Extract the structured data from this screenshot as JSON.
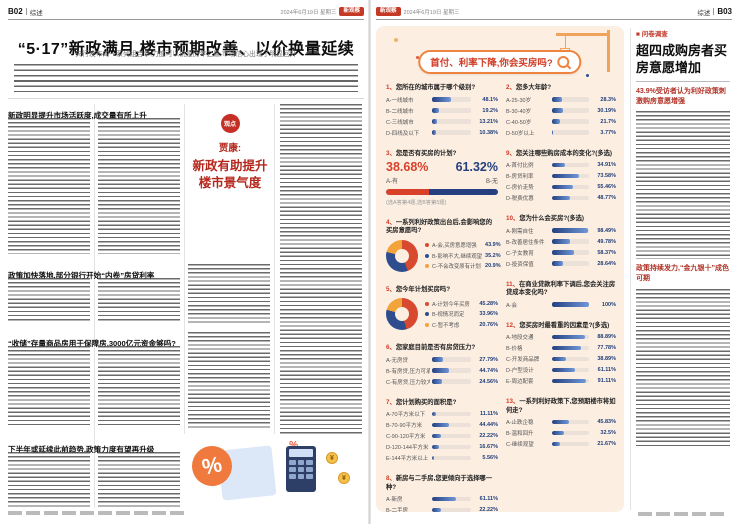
{
  "masthead": {
    "left_page": "B02",
    "right_page": "B03",
    "section_left": "综述",
    "section_right": "综述",
    "date_left": "2024年6月19日 星期三",
    "date_right": "2024年6月19日 星期三",
    "badge_left": "新观察",
    "badge_right": "新观察"
  },
  "left_page": {
    "headline": "“5·17”新政满月,楼市预期改善、以价换量延续",
    "deck": "央行发布的一系列组合拳,力度可以说是历年之最,市场信心出现了明显回升",
    "section1": "新政明显提升市场活跃度,成交量有所上升",
    "section2": "政策加快落地,部分银行开始“内卷”房贷利率",
    "section3": "“收储”存量商品房用于保障房,3000亿元资金够吗?",
    "section4": "下半年或延续此前趋势,政策力度有望再升级",
    "quote_badge": "观点",
    "quote_speaker": "贾康:",
    "quote_text": "新政有助提升楼市景气度",
    "illustration_percent": "%",
    "illustration_yen": "¥"
  },
  "infographic": {
    "title": "首付、利率下降,你会买房吗?",
    "questions_left": [
      {
        "num": "1",
        "type": "bars",
        "title": "您所在的城市属于哪个级别?",
        "options": [
          {
            "label": "A-一线城市",
            "value": 48.1
          },
          {
            "label": "B-二线城市",
            "value": 19.2
          },
          {
            "label": "C-三线城市",
            "value": 13.21
          },
          {
            "label": "D-四线及以下",
            "value": 10.38
          }
        ]
      },
      {
        "num": "3",
        "type": "bigstat",
        "title": "您是否有买房的计划?",
        "note": "(选A答第4题,选B答第5题)",
        "a": {
          "label": "A-有",
          "value": 38.68
        },
        "b": {
          "label": "B-无",
          "value": 61.32
        }
      },
      {
        "num": "4",
        "type": "donut",
        "title": "一系列利好政策出台后,会影响您的买房意愿吗?",
        "options": [
          {
            "label": "A-会,买房意愿增强",
            "value": 43.9
          },
          {
            "label": "B-影响不大,继续观望",
            "value": 35.2
          },
          {
            "label": "C-不会改变原有计划",
            "value": 20.9
          }
        ]
      },
      {
        "num": "5",
        "type": "donut",
        "title": "您今年计划买房吗?",
        "options": [
          {
            "label": "A-计划今年买房",
            "value": 45.28
          },
          {
            "label": "B-视情况而定",
            "value": 33.96
          },
          {
            "label": "C-暂不考虑",
            "value": 20.76
          }
        ]
      },
      {
        "num": "6",
        "type": "bars",
        "title": "您家庭目前是否有房贷压力?",
        "options": [
          {
            "label": "A-无房贷",
            "value": 27.79
          },
          {
            "label": "B-有房贷,压力可承受",
            "value": 44.74
          },
          {
            "label": "C-有房贷,压力较大",
            "value": 24.56
          }
        ]
      },
      {
        "num": "7",
        "type": "bars",
        "title": "您计划购买的面积是?",
        "options": [
          {
            "label": "A-70平方米以下",
            "value": 11.11
          },
          {
            "label": "B-70-90平方米",
            "value": 44.44
          },
          {
            "label": "C-90-120平方米",
            "value": 22.22
          },
          {
            "label": "D-120-144平方米",
            "value": 16.67
          },
          {
            "label": "E-144平方米以上",
            "value": 5.56
          }
        ]
      },
      {
        "num": "8",
        "type": "bars",
        "title": "新房与二手房,您更倾向于选择哪一种?",
        "options": [
          {
            "label": "A-新房",
            "value": 61.11
          },
          {
            "label": "B-二手房",
            "value": 22.22
          },
          {
            "label": "C-都可以",
            "value": 16.67
          }
        ]
      }
    ],
    "questions_right": [
      {
        "num": "2",
        "type": "bars",
        "title": "您多大年龄?",
        "options": [
          {
            "label": "A-25-30岁",
            "value": 28.3
          },
          {
            "label": "B-30-40岁",
            "value": 30.19
          },
          {
            "label": "C-40-50岁",
            "value": 21.7
          },
          {
            "label": "D-50岁以上",
            "value": 3.77
          }
        ]
      },
      {
        "num": "9",
        "type": "bars",
        "title": "您关注哪些购房成本的变化?(多选)",
        "options": [
          {
            "label": "A-首付比例",
            "value": 34.91
          },
          {
            "label": "B-房贷利率",
            "value": 73.58
          },
          {
            "label": "C-房价走势",
            "value": 55.46
          },
          {
            "label": "D-税费优惠",
            "value": 48.77
          }
        ]
      },
      {
        "num": "10",
        "type": "bars",
        "title": "您为什么会买房?(多选)",
        "options": [
          {
            "label": "A-刚需自住",
            "value": 98.49
          },
          {
            "label": "B-改善居住条件",
            "value": 49.78
          },
          {
            "label": "C-子女教育",
            "value": 58.37
          },
          {
            "label": "D-投资保值",
            "value": 28.64
          }
        ]
      },
      {
        "num": "11",
        "type": "bars",
        "title": "在商业贷款利率下调后,您会关注房贷成本变化吗?",
        "options": [
          {
            "label": "A-会",
            "value": 100
          }
        ]
      },
      {
        "num": "12",
        "type": "bars",
        "title": "您买房时最看重的因素是?(多选)",
        "options": [
          {
            "label": "A-地段交通",
            "value": 88.89
          },
          {
            "label": "B-价格",
            "value": 77.78
          },
          {
            "label": "C-开发商品牌",
            "value": 38.89
          },
          {
            "label": "D-户型设计",
            "value": 61.11
          },
          {
            "label": "E-周边配套",
            "value": 91.11
          }
        ]
      },
      {
        "num": "13",
        "type": "bars",
        "title": "一系列利好政策下,您预期楼市将如何走?",
        "options": [
          {
            "label": "A-止跌企稳",
            "value": 45.83
          },
          {
            "label": "B-温和回升",
            "value": 32.5
          },
          {
            "label": "C-继续观望",
            "value": 21.67
          }
        ]
      }
    ]
  },
  "right_article": {
    "kicker": "■ 问卷调查",
    "headline": "超四成购房者买房意愿增加",
    "subhead1": "43.9%受访者认为利好政策刺激购房意愿增强",
    "subhead2": "政策持续发力,“金九银十”成色可期"
  },
  "colors": {
    "accent_red": "#c43a26",
    "bar_dark": "#24407f",
    "bar_light": "#6f97d8",
    "stat_a": "#d8402a",
    "stat_b": "#24407f",
    "donut_palette": [
      "#d84a2f",
      "#2e4d8f",
      "#f2a33c"
    ],
    "panel_bg": "#fcefe2"
  }
}
